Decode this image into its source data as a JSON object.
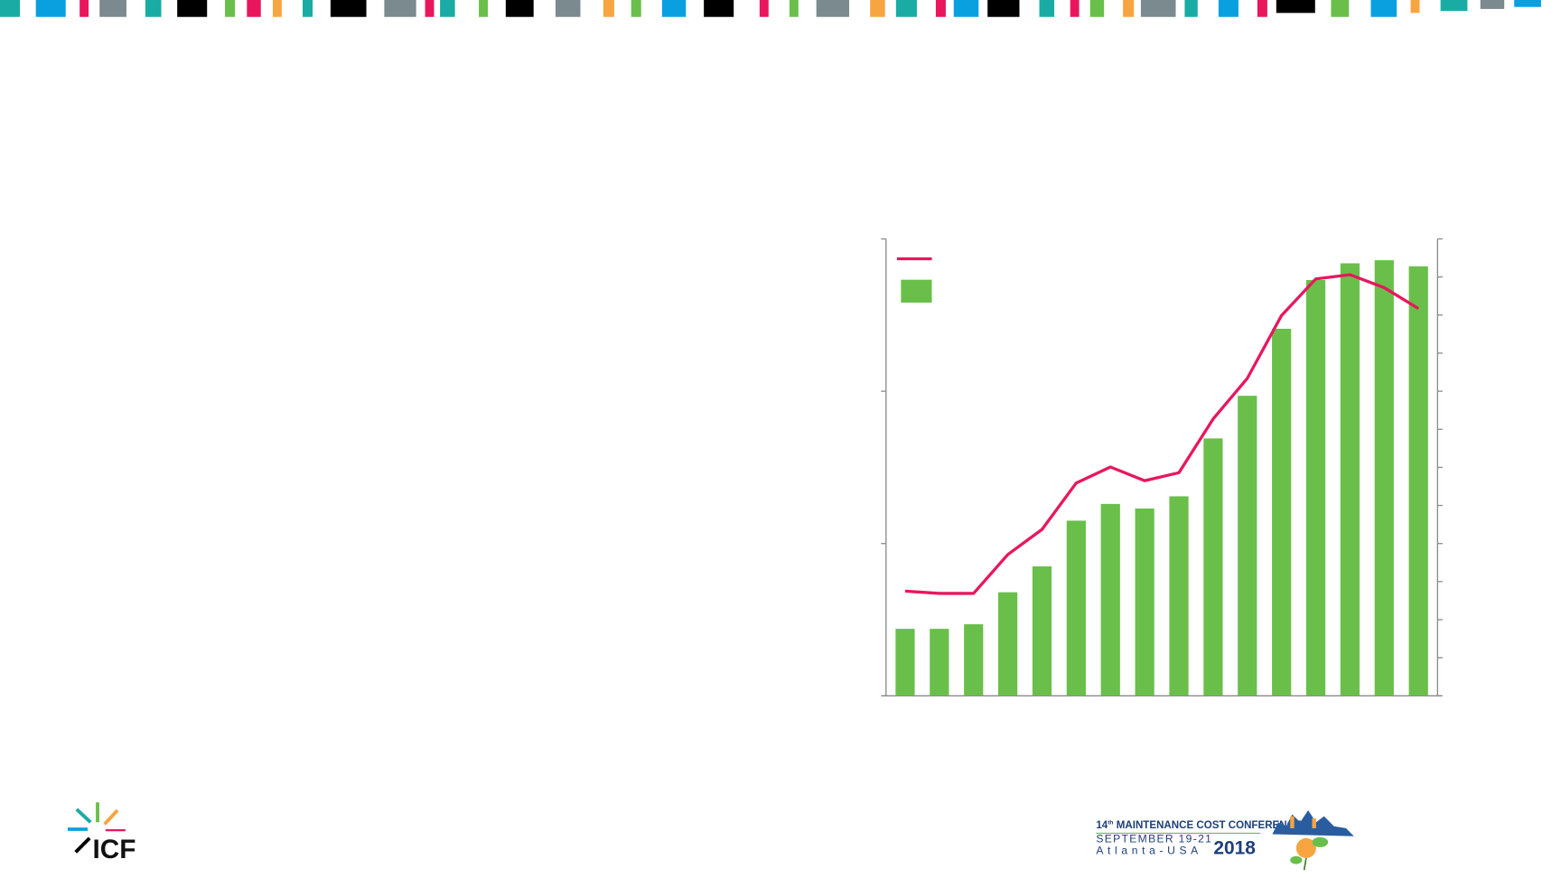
{
  "chart_data": {
    "type": "bar-line",
    "categories": [
      null,
      null,
      null,
      null,
      null,
      null,
      null,
      null,
      null,
      null,
      null,
      null,
      null,
      null,
      null,
      null
    ],
    "series": [
      {
        "type": "bar",
        "color": "#6abf4b",
        "axis": "y",
        "values": [
          0.44,
          0.44,
          0.47,
          0.68,
          0.85,
          1.15,
          1.26,
          1.23,
          1.31,
          1.69,
          1.97,
          2.41,
          2.73,
          2.84,
          2.86,
          2.82
        ]
      },
      {
        "type": "line",
        "color": "#e8175d",
        "axis": "y2",
        "values": [
          2.75,
          2.69,
          2.69,
          3.71,
          4.37,
          5.59,
          6.01,
          5.65,
          5.86,
          7.27,
          8.34,
          9.99,
          10.95,
          11.06,
          10.72,
          10.17
        ]
      }
    ],
    "ylim": [
      0,
      3
    ],
    "yticks": [
      0,
      1,
      2,
      3
    ],
    "y2lim": [
      0,
      12
    ],
    "y2ticks": [
      0,
      1,
      2,
      3,
      4,
      5,
      6,
      7,
      8,
      9,
      10,
      11,
      12
    ],
    "legend": "upper left"
  },
  "logo": {
    "text": "ICF"
  },
  "conference": {
    "edition": "14",
    "edition_suffix": "th",
    "name": "MAINTENANCE COST CONFERENCE",
    "dates": "SEPTEMBER 19-21",
    "location": "Atlanta-USA",
    "year": "2018"
  }
}
